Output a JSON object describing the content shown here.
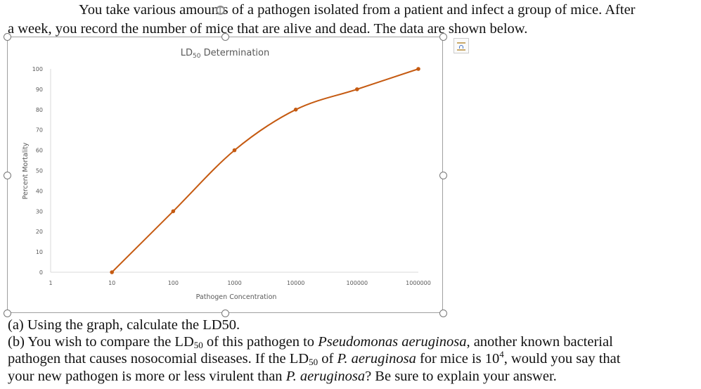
{
  "intro": {
    "line1": "You take various amounts of a pathogen isolated from a patient and infect a group of mice. After",
    "line2": "a week, you record the number of mice that are alive and dead. The data are shown below."
  },
  "questions": {
    "a": "(a) Using the graph, calculate the LD50.",
    "b_line1_pre": "(b) You wish to compare the LD",
    "b_line1_mid": " of this pathogen to ",
    "b_line1_species": "Pseudomonas aeruginosa",
    "b_line1_post": ", another known bacterial",
    "b_line2_pre": "pathogen that causes nosocomial diseases. If the LD",
    "b_line2_mid": " of ",
    "b_line2_species": "P. aeruginosa",
    "b_line2_post": " for mice is 10",
    "b_line2_exp": "4",
    "b_line2_end": ", would you say that",
    "b_line3_pre": "your new pathogen is more or less virulent than ",
    "b_line3_species": "P. aeruginosa",
    "b_line3_post": "? Be sure to explain your answer.",
    "sub50": "50"
  },
  "icons": {
    "rotate": "rotate-handle-icon",
    "layout": "layout-options-icon"
  },
  "chart_data": {
    "type": "line",
    "title": "LD50 Determination",
    "title_main": "LD",
    "title_sub": "50",
    "title_rest": " Determination",
    "xlabel": "Pathogen Concentration",
    "ylabel": "Percent Mortality",
    "x_scale": "log",
    "x_ticks": [
      "1",
      "10",
      "100",
      "1000",
      "10000",
      "100000",
      "1000000"
    ],
    "y_ticks": [
      "0",
      "10",
      "20",
      "30",
      "40",
      "50",
      "60",
      "70",
      "80",
      "90",
      "100"
    ],
    "ylim": [
      0,
      100
    ],
    "xlim": [
      1,
      1000000
    ],
    "grid": false,
    "smooth": true,
    "color": "#c55a11",
    "x": [
      10,
      100,
      1000,
      10000,
      100000,
      1000000
    ],
    "y": [
      0,
      30,
      60,
      80,
      90,
      100
    ]
  }
}
